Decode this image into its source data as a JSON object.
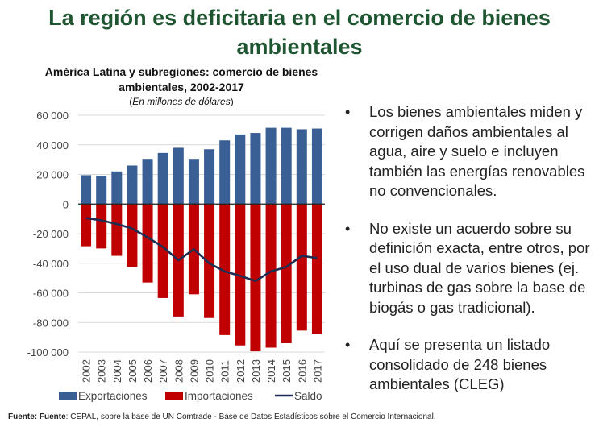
{
  "slide": {
    "title_line1": "La región es deficitaria en el comercio de bienes",
    "title_line2": "ambientales"
  },
  "bullets": [
    "Los bienes ambientales miden y corrigen daños ambientales al agua, aire y suelo e incluyen también las energías renovables no convencionales.",
    "No existe un acuerdo sobre su definición exacta, entre otros, por el uso dual de varios bienes (ej. turbinas de gas sobre la base de biogás o gas tradicional).",
    "Aquí se presenta un listado consolidado de 248 bienes ambientales (CLEG)"
  ],
  "bullet_symbol": "•",
  "source": {
    "label": "Fuente: Fuente",
    "text": ": CEPAL, sobre la base de UN Comtrade - Base de Datos Estadísticos sobre el Comercio Internacional."
  },
  "chart_data": {
    "type": "bar",
    "title_line1": "América Latina y subregiones: comercio de bienes",
    "title_line2": "ambientales, 2002-2017",
    "subtitle_open": "(",
    "subtitle_italic": "En millones de dólares",
    "subtitle_close": ")",
    "xlabel": "",
    "ylabel": "",
    "ylim": [
      -100000,
      60000
    ],
    "yticks": [
      60000,
      40000,
      20000,
      0,
      -20000,
      -40000,
      -60000,
      -80000,
      -100000
    ],
    "ytick_labels": [
      "60 000",
      "40 000",
      "20 000",
      "0",
      "-20 000",
      "-40 000",
      "-60 000",
      "-80 000",
      "-100 000"
    ],
    "grid": true,
    "legend_position": "bottom",
    "categories": [
      "2002",
      "2003",
      "2004",
      "2005",
      "2006",
      "2007",
      "2008",
      "2009",
      "2010",
      "2011",
      "2012",
      "2013",
      "2014",
      "2015",
      "2016",
      "2017"
    ],
    "series": [
      {
        "name": "Exportaciones",
        "type": "bar",
        "color": "#3a5f94",
        "values": [
          19500,
          19200,
          22000,
          26000,
          30500,
          34500,
          38000,
          30500,
          37000,
          43000,
          47000,
          48000,
          51500,
          51500,
          50500,
          51000
        ]
      },
      {
        "name": "Importaciones",
        "type": "bar",
        "color": "#c00000",
        "values": [
          -28500,
          -30000,
          -35000,
          -42500,
          -53000,
          -63500,
          -76000,
          -61000,
          -77000,
          -88500,
          -95500,
          -99500,
          -97000,
          -94000,
          -85500,
          -87500
        ]
      },
      {
        "name": "Saldo",
        "type": "line",
        "color": "#1f2d52",
        "values": [
          -9500,
          -11000,
          -13500,
          -16500,
          -22500,
          -29000,
          -38000,
          -30500,
          -40000,
          -45500,
          -48500,
          -52000,
          -45500,
          -42500,
          -35000,
          -36500
        ]
      }
    ]
  }
}
